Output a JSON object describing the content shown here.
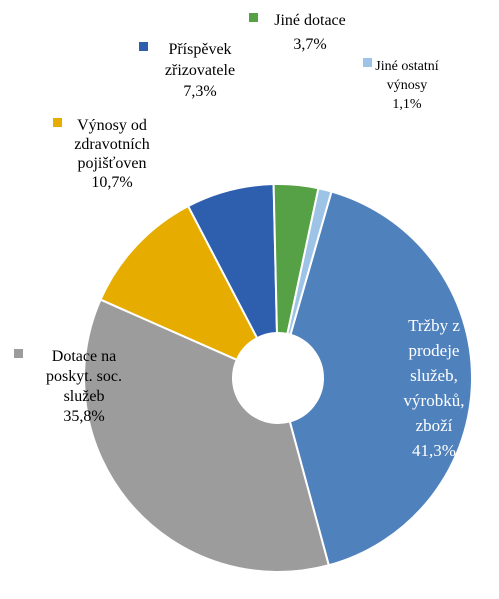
{
  "chart_data": {
    "type": "pie",
    "donut": true,
    "slices": [
      {
        "label_lines": [
          "Tržby z",
          "prodeje",
          "služeb,",
          "výrobků,",
          "zboží"
        ],
        "value": 41.3,
        "value_text": "41,3%",
        "color": "#4f81bd",
        "label_color": "#ffffff",
        "label_inside": true
      },
      {
        "label_lines": [
          "Dotace na",
          "poskyt. soc.",
          "služeb"
        ],
        "value": 35.8,
        "value_text": "35,8%",
        "color": "#9c9c9c",
        "label_color": "#000000",
        "label_inside": false
      },
      {
        "label_lines": [
          "Výnosy od",
          "zdravotních",
          "pojišťoven"
        ],
        "value": 10.7,
        "value_text": "10,7%",
        "color": "#e6ac00",
        "label_color": "#000000",
        "label_inside": false
      },
      {
        "label_lines": [
          "Příspěvek",
          "zřizovatele"
        ],
        "value": 7.3,
        "value_text": "7,3%",
        "color": "#2e5fae",
        "label_color": "#000000",
        "label_inside": false
      },
      {
        "label_lines": [
          "Jiné dotace"
        ],
        "value": 3.7,
        "value_text": "3,7%",
        "color": "#56a046",
        "label_color": "#000000",
        "label_inside": false
      },
      {
        "label_lines": [
          "Jiné ostatní",
          "výnosy"
        ],
        "value": 1.1,
        "value_text": "1,1%",
        "color": "#9dc3e6",
        "label_color": "#000000",
        "label_inside": false
      }
    ],
    "legend": "labels attached to slices"
  }
}
